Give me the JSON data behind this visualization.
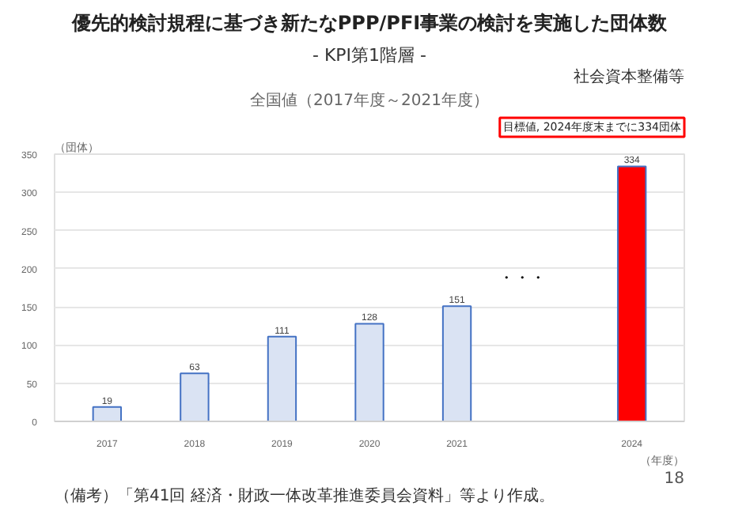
{
  "chart_data": {
    "type": "bar",
    "title": "優先的検討規程に基づき新たなPPP/PFI事業の検討を実施した団体数",
    "subtitle": "- KPI第1階層 -",
    "annotations": [
      "社会資本整備等",
      "全国値（2017年度～2021年度）",
      "目標値, 2024年度末までに334団体",
      "・・・",
      "（備考）「第41回 経済・財政一体改革推進委員会資料」等より作成。",
      "18"
    ],
    "ylabel": "（団体）",
    "xlabel": "（年度）",
    "categories": [
      "2017",
      "2018",
      "2019",
      "2020",
      "2021",
      null,
      "2024"
    ],
    "values": [
      19,
      63,
      111,
      128,
      151,
      null,
      334
    ],
    "colors": [
      "#dae3f3",
      "#dae3f3",
      "#dae3f3",
      "#dae3f3",
      "#dae3f3",
      null,
      "#ff0000"
    ],
    "ylim": [
      0,
      350
    ],
    "yticks": [
      0,
      50,
      100,
      150,
      200,
      250,
      300,
      350
    ],
    "grid": "y",
    "data_labels": true
  }
}
